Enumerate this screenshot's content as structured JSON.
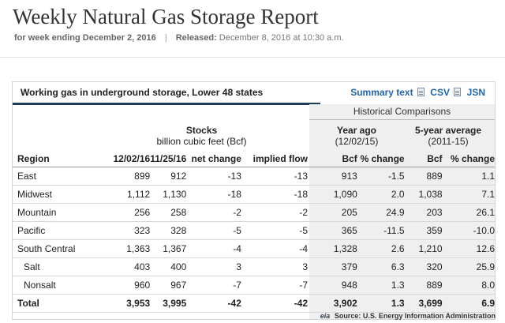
{
  "header": {
    "title": "Weekly Natural Gas Storage Report",
    "week_label": "for week ending December 2, 2016",
    "separator": "|",
    "released_label": "Released:",
    "released_value": "December 8, 2016 at 10:30 a.m."
  },
  "card": {
    "title": "Working gas in underground storage, Lower 48 states",
    "links": {
      "summary": "Summary text",
      "csv": "CSV",
      "json": "JSN"
    },
    "historical_label": "Historical Comparisons",
    "groups": {
      "stocks_title": "Stocks",
      "stocks_unit": "billion cubic feet (Bcf)",
      "year_ago_title": "Year ago",
      "year_ago_date": "(12/02/15)",
      "five_year_title": "5-year average",
      "five_year_range": "(2011-15)"
    },
    "columns": [
      "Region",
      "12/02/16",
      "11/25/16",
      "net change",
      "implied flow",
      "Bcf",
      "% change",
      "Bcf",
      "% change"
    ],
    "rows": [
      {
        "region": "East",
        "cur": "899",
        "prev": "912",
        "net": "-13",
        "flow": "-13",
        "ya_bcf": "913",
        "ya_pct": "-1.5",
        "fy_bcf": "889",
        "fy_pct": "1.1"
      },
      {
        "region": "Midwest",
        "cur": "1,112",
        "prev": "1,130",
        "net": "-18",
        "flow": "-18",
        "ya_bcf": "1,090",
        "ya_pct": "2.0",
        "fy_bcf": "1,038",
        "fy_pct": "7.1"
      },
      {
        "region": "Mountain",
        "cur": "256",
        "prev": "258",
        "net": "-2",
        "flow": "-2",
        "ya_bcf": "205",
        "ya_pct": "24.9",
        "fy_bcf": "203",
        "fy_pct": "26.1"
      },
      {
        "region": "Pacific",
        "cur": "323",
        "prev": "328",
        "net": "-5",
        "flow": "-5",
        "ya_bcf": "365",
        "ya_pct": "-11.5",
        "fy_bcf": "359",
        "fy_pct": "-10.0"
      },
      {
        "region": "South Central",
        "cur": "1,363",
        "prev": "1,367",
        "net": "-4",
        "flow": "-4",
        "ya_bcf": "1,328",
        "ya_pct": "2.6",
        "fy_bcf": "1,210",
        "fy_pct": "12.6"
      },
      {
        "region": "Salt",
        "cur": "403",
        "prev": "400",
        "net": "3",
        "flow": "3",
        "ya_bcf": "379",
        "ya_pct": "6.3",
        "fy_bcf": "320",
        "fy_pct": "25.9"
      },
      {
        "region": "Nonsalt",
        "cur": "960",
        "prev": "967",
        "net": "-7",
        "flow": "-7",
        "ya_bcf": "948",
        "ya_pct": "1.3",
        "fy_bcf": "889",
        "fy_pct": "8.0"
      }
    ],
    "total": {
      "region": "Total",
      "cur": "3,953",
      "prev": "3,995",
      "net": "-42",
      "flow": "-42",
      "ya_bcf": "3,902",
      "ya_pct": "1.3",
      "fy_bcf": "3,699",
      "fy_pct": "6.9"
    }
  },
  "footer": {
    "logo_text": "eia",
    "source": "Source:  U.S. Energy Information Administration"
  }
}
